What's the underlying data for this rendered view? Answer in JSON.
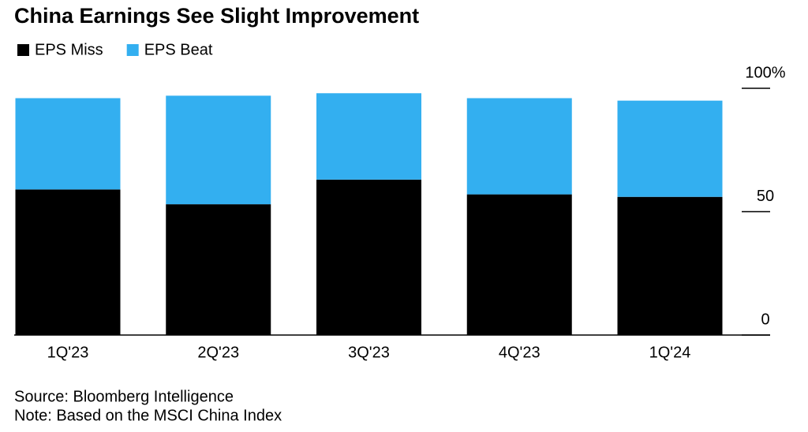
{
  "chart_data": {
    "type": "stacked-bar",
    "title": "China Earnings See Slight Improvement",
    "categories": [
      "1Q'23",
      "2Q'23",
      "3Q'23",
      "4Q'23",
      "1Q'24"
    ],
    "series": [
      {
        "name": "EPS Miss",
        "color": "#000000",
        "values": [
          59,
          53,
          63,
          57,
          56
        ]
      },
      {
        "name": "EPS Beat",
        "color": "#33aff0",
        "values": [
          37,
          44,
          35,
          39,
          39
        ]
      }
    ],
    "ylim": [
      0,
      100
    ],
    "yticks": [
      0,
      50,
      {
        "value": 100,
        "label": "100%"
      }
    ],
    "source": "Source: Bloomberg Intelligence",
    "note": "Note: Based on the MSCI China Index"
  }
}
